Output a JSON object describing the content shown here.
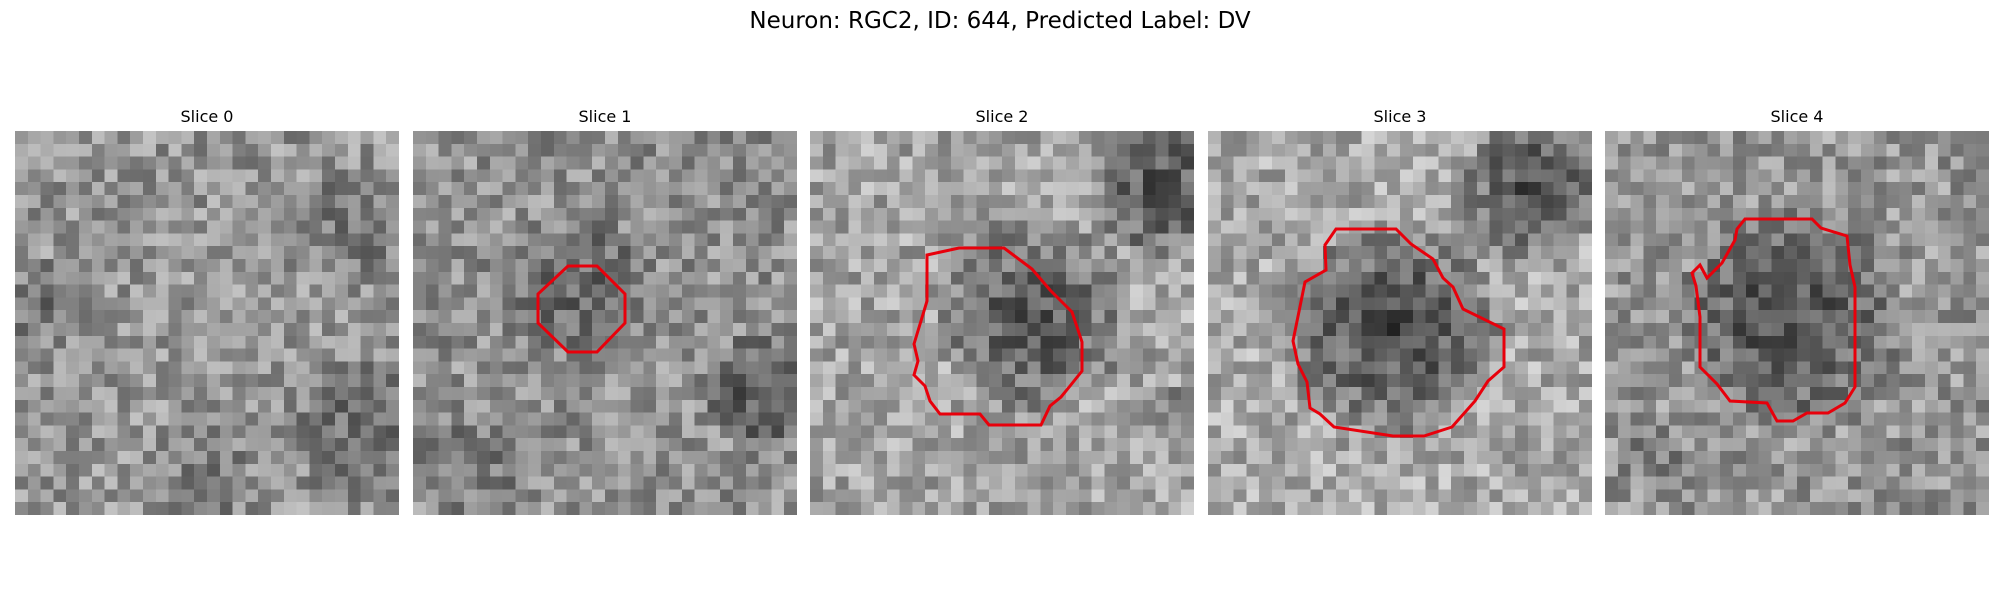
{
  "figure": {
    "title": "Neuron: RGC2, ID: 644, Predicted Label: DV",
    "background": "#ffffff",
    "contour_color": "#e8000b"
  },
  "slices": [
    {
      "label": "Slice 0",
      "mean": 150,
      "has_contour": false
    },
    {
      "label": "Slice 1",
      "mean": 145,
      "has_contour": true
    },
    {
      "label": "Slice 2",
      "mean": 165,
      "has_contour": true
    },
    {
      "label": "Slice 3",
      "mean": 170,
      "has_contour": true
    },
    {
      "label": "Slice 4",
      "mean": 150,
      "has_contour": true
    }
  ]
}
